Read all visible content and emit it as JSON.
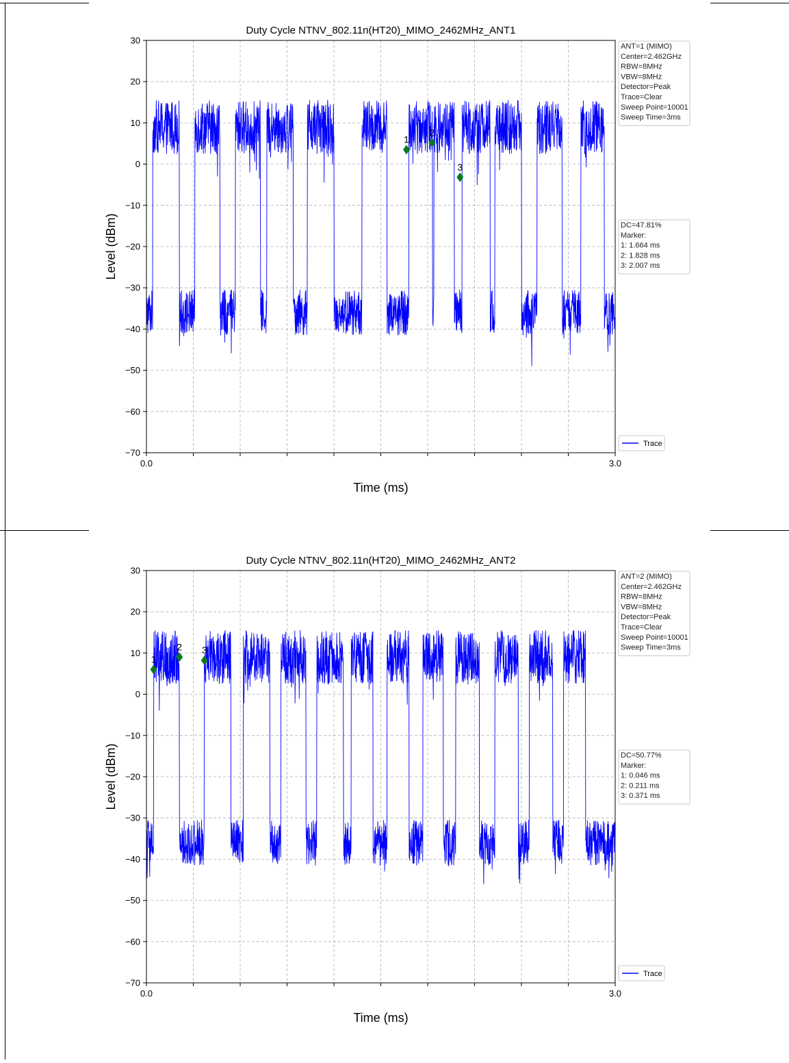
{
  "colors": {
    "trace": "#0000ff",
    "marker": "#0a7a1e",
    "grid": "#b0b0b0",
    "infobox_border": "#c8c8c8"
  },
  "chart_data": [
    {
      "type": "line",
      "title": "Duty Cycle NTNV_802.11n(HT20)_MIMO_2462MHz_ANT1",
      "xlabel": "Time (ms)",
      "ylabel": "Level (dBm)",
      "xlim": [
        0.0,
        3.0
      ],
      "ylim": [
        -70,
        30
      ],
      "x_tick_labels": [
        "0.0",
        "3.0"
      ],
      "x_minor_ticks": [
        0.3,
        0.6,
        0.9,
        1.2,
        1.5,
        1.8,
        2.1,
        2.4,
        2.7
      ],
      "y_ticks": [
        30,
        20,
        10,
        0,
        -10,
        -20,
        -30,
        -40,
        -50,
        -60,
        -70
      ],
      "y_tick_labels": [
        "30",
        "20",
        "10",
        "0",
        "−10",
        "−20",
        "−30",
        "−40",
        "−50",
        "−60",
        "−70"
      ],
      "grid": true,
      "legend": {
        "label": "Trace",
        "placement": "lower-right"
      },
      "info_top": [
        "ANT=1 (MIMO)",
        "Center=2.462GHz",
        "RBW=8MHz",
        "VBW=8MHz",
        "Detector=Peak",
        "Trace=Clear",
        "Sweep Point=10001",
        "Sweep Time=3ms"
      ],
      "info_mid": [
        "DC=47.81%",
        "Marker:",
        "1: 1.664 ms",
        "2: 1.828 ms",
        "3: 2.007 ms"
      ],
      "series": [
        {
          "name": "Trace",
          "high_level_dbm": 9,
          "low_level_dbm": -36,
          "on_intervals_ms": [
            [
              0.04,
              0.21
            ],
            [
              0.31,
              0.47
            ],
            [
              0.57,
              0.73
            ],
            [
              0.77,
              0.94
            ],
            [
              1.03,
              1.2
            ],
            [
              1.38,
              1.54
            ],
            [
              1.68,
              1.83
            ],
            [
              1.84,
              1.97
            ],
            [
              2.02,
              2.2
            ],
            [
              2.23,
              2.4
            ],
            [
              2.5,
              2.66
            ],
            [
              2.78,
              2.93
            ]
          ]
        }
      ],
      "markers": [
        {
          "label": "1",
          "x": 1.664,
          "y": 3.5
        },
        {
          "label": "2",
          "x": 1.828,
          "y": 5.2
        },
        {
          "label": "3",
          "x": 2.007,
          "y": -3.2
        }
      ]
    },
    {
      "type": "line",
      "title": "Duty Cycle NTNV_802.11n(HT20)_MIMO_2462MHz_ANT2",
      "xlabel": "Time (ms)",
      "ylabel": "Level (dBm)",
      "xlim": [
        0.0,
        3.0
      ],
      "ylim": [
        -70,
        30
      ],
      "x_tick_labels": [
        "0.0",
        "3.0"
      ],
      "x_minor_ticks": [
        0.3,
        0.6,
        0.9,
        1.2,
        1.5,
        1.8,
        2.1,
        2.4,
        2.7
      ],
      "y_ticks": [
        30,
        20,
        10,
        0,
        -10,
        -20,
        -30,
        -40,
        -50,
        -60,
        -70
      ],
      "y_tick_labels": [
        "30",
        "20",
        "10",
        "0",
        "−10",
        "−20",
        "−30",
        "−40",
        "−50",
        "−60",
        "−70"
      ],
      "grid": true,
      "legend": {
        "label": "Trace",
        "placement": "lower-right"
      },
      "info_top": [
        "ANT=2 (MIMO)",
        "Center=2.462GHz",
        "RBW=8MHz",
        "VBW=8MHz",
        "Detector=Peak",
        "Trace=Clear",
        "Sweep Point=10001",
        "Sweep Time=3ms"
      ],
      "info_mid": [
        "DC=50.77%",
        "Marker:",
        "1: 0.046 ms",
        "2: 0.211 ms",
        "3: 0.371 ms"
      ],
      "series": [
        {
          "name": "Trace",
          "high_level_dbm": 9,
          "low_level_dbm": -36,
          "on_intervals_ms": [
            [
              0.046,
              0.21
            ],
            [
              0.37,
              0.54
            ],
            [
              0.62,
              0.79
            ],
            [
              0.86,
              1.02
            ],
            [
              1.09,
              1.26
            ],
            [
              1.31,
              1.45
            ],
            [
              1.54,
              1.68
            ],
            [
              1.77,
              1.9
            ],
            [
              1.98,
              2.13
            ],
            [
              2.23,
              2.38
            ],
            [
              2.45,
              2.6
            ],
            [
              2.67,
              2.81
            ]
          ]
        }
      ],
      "markers": [
        {
          "label": "1",
          "x": 0.046,
          "y": 6.0
        },
        {
          "label": "2",
          "x": 0.211,
          "y": 9.0
        },
        {
          "label": "3",
          "x": 0.371,
          "y": 8.2
        }
      ]
    }
  ]
}
